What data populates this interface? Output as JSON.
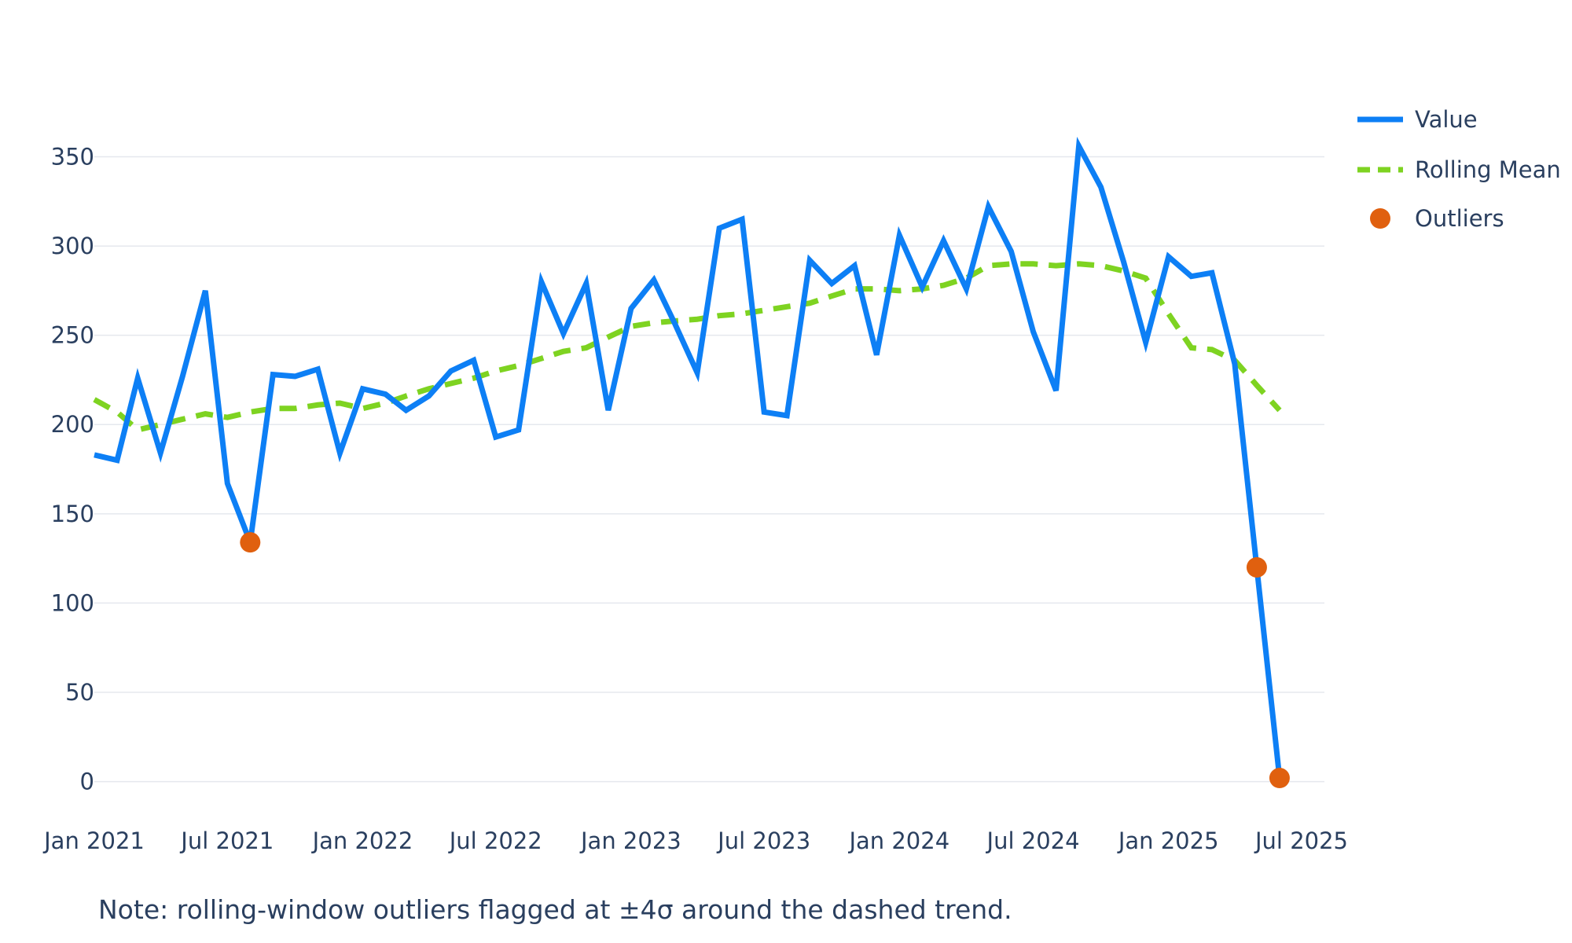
{
  "chart_data": {
    "type": "line",
    "title": "",
    "xlabel": "",
    "ylabel": "",
    "x_range": [
      "2021-01-01",
      "2025-08-01"
    ],
    "y_range": [
      -20,
      385
    ],
    "y_ticks": [
      0,
      50,
      100,
      150,
      200,
      250,
      300,
      350
    ],
    "x_ticks": [
      {
        "date": "2021-01-01",
        "label": "Jan 2021"
      },
      {
        "date": "2021-07-01",
        "label": "Jul 2021"
      },
      {
        "date": "2022-01-01",
        "label": "Jan 2022"
      },
      {
        "date": "2022-07-01",
        "label": "Jul 2022"
      },
      {
        "date": "2023-01-01",
        "label": "Jan 2023"
      },
      {
        "date": "2023-07-01",
        "label": "Jul 2023"
      },
      {
        "date": "2024-01-01",
        "label": "Jan 2024"
      },
      {
        "date": "2024-07-01",
        "label": "Jul 2024"
      },
      {
        "date": "2025-01-01",
        "label": "Jan 2025"
      },
      {
        "date": "2025-07-01",
        "label": "Jul 2025"
      }
    ],
    "grid": true,
    "legend_position": "top-right",
    "dates": [
      "2021-01",
      "2021-02",
      "2021-03",
      "2021-04",
      "2021-05",
      "2021-06",
      "2021-07",
      "2021-08",
      "2021-09",
      "2021-10",
      "2021-11",
      "2021-12",
      "2022-01",
      "2022-02",
      "2022-03",
      "2022-04",
      "2022-05",
      "2022-06",
      "2022-07",
      "2022-08",
      "2022-09",
      "2022-10",
      "2022-11",
      "2022-12",
      "2023-01",
      "2023-02",
      "2023-03",
      "2023-04",
      "2023-05",
      "2023-06",
      "2023-07",
      "2023-08",
      "2023-09",
      "2023-10",
      "2023-11",
      "2023-12",
      "2024-01",
      "2024-02",
      "2024-03",
      "2024-04",
      "2024-05",
      "2024-06",
      "2024-07",
      "2024-08",
      "2024-09",
      "2024-10",
      "2024-11",
      "2024-12",
      "2025-01",
      "2025-02",
      "2025-03",
      "2025-04",
      "2025-05",
      "2025-06"
    ],
    "series": [
      {
        "name": "Value",
        "type": "line",
        "color": "#0d7ff5",
        "values": [
          183,
          180,
          226,
          184,
          227,
          275,
          167,
          134,
          228,
          227,
          231,
          184,
          220,
          217,
          208,
          216,
          230,
          236,
          193,
          197,
          280,
          251,
          279,
          208,
          265,
          281,
          257,
          229,
          310,
          315,
          207,
          205,
          292,
          279,
          289,
          239,
          306,
          277,
          303,
          276,
          322,
          297,
          252,
          219,
          356,
          333,
          291,
          246,
          294,
          283,
          285,
          234,
          120,
          2
        ]
      },
      {
        "name": "Rolling Mean",
        "type": "line-dashed",
        "color": "#7ed321",
        "values": [
          214,
          207,
          197,
          200,
          203,
          206,
          204,
          207,
          209,
          209,
          211,
          212,
          209,
          212,
          216,
          220,
          223,
          226,
          230,
          233,
          237,
          241,
          243,
          249,
          255,
          257,
          258,
          259,
          261,
          262,
          264,
          266,
          268,
          272,
          276,
          276,
          275,
          276,
          278,
          282,
          289,
          290,
          290,
          289,
          290,
          289,
          286,
          282,
          262,
          243,
          242,
          236,
          222,
          208
        ]
      },
      {
        "name": "Outliers",
        "type": "scatter",
        "color": "#e0600f",
        "points": [
          {
            "date": "2021-08",
            "value": 134
          },
          {
            "date": "2025-05",
            "value": 120
          },
          {
            "date": "2025-06",
            "value": 2
          }
        ]
      }
    ],
    "note": "Note: rolling-window outliers flagged at ±4σ around the dashed trend."
  }
}
